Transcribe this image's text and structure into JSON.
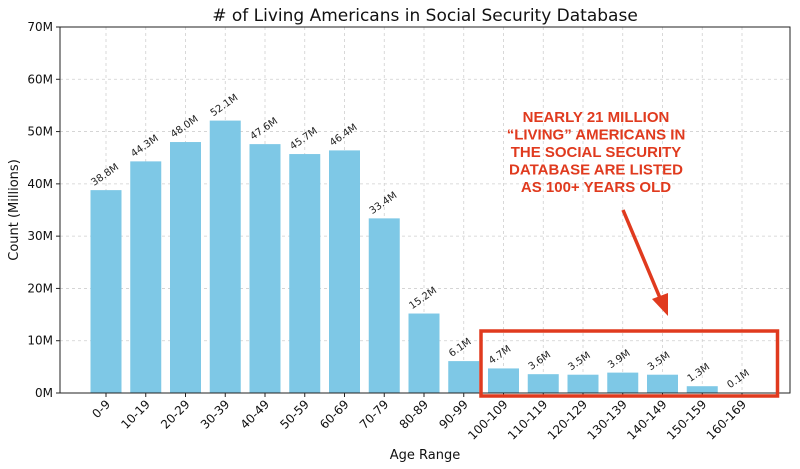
{
  "chart_data": {
    "type": "bar",
    "title": "# of Living Americans in Social Security Database",
    "xlabel": "Age Range",
    "ylabel": "Count (Millions)",
    "ylim": [
      0,
      70
    ],
    "yticks": [
      0,
      10,
      20,
      30,
      40,
      50,
      60,
      70
    ],
    "ytick_suffix": "M",
    "grid": true,
    "bar_color": "#7ec8e6",
    "categories": [
      "0-9",
      "10-19",
      "20-29",
      "30-39",
      "40-49",
      "50-59",
      "60-69",
      "70-79",
      "80-89",
      "90-99",
      "100-109",
      "110-119",
      "120-129",
      "130-139",
      "140-149",
      "150-159",
      "160-169"
    ],
    "values": [
      38.8,
      44.3,
      48.0,
      52.1,
      47.6,
      45.7,
      46.4,
      33.4,
      15.2,
      6.1,
      4.7,
      3.6,
      3.5,
      3.9,
      3.5,
      1.3,
      0.1
    ],
    "data_labels": [
      "38.8M",
      "44.3M",
      "48.0M",
      "52.1M",
      "47.6M",
      "45.7M",
      "46.4M",
      "33.4M",
      "15.2M",
      "6.1M",
      "4.7M",
      "3.6M",
      "3.5M",
      "3.9M",
      "3.5M",
      "1.3M",
      "0.1M"
    ],
    "annotation": {
      "lines": [
        "NEARLY 21 MILLION",
        "“LIVING” AMERICANS IN",
        "THE SOCIAL SECURITY",
        "DATABASE ARE LISTED",
        "AS 100+ YEARS OLD"
      ],
      "color": "#e03a1e",
      "highlight_range": [
        "100-109",
        "160-169"
      ]
    }
  }
}
